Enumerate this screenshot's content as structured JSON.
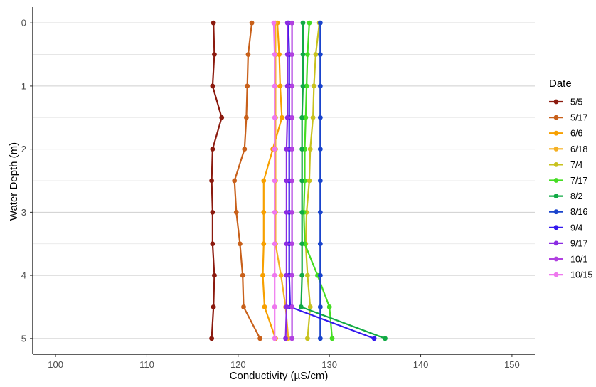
{
  "chart_data": {
    "type": "line",
    "xlabel": "Conductivity (µS/cm)",
    "ylabel": "Water Depth (m)",
    "xlim": [
      97.5,
      152.5
    ],
    "ylim": [
      -0.25,
      5.25
    ],
    "y_reversed": true,
    "x_ticks": [
      100,
      110,
      120,
      130,
      140,
      150
    ],
    "y_ticks": [
      0,
      1,
      2,
      3,
      4,
      5
    ],
    "grid": "horizontal major and minor gridlines",
    "legend_position": "right",
    "legend_title": "Date",
    "depths": [
      0,
      0.5,
      1,
      1.5,
      2,
      2.5,
      3,
      3.5,
      4,
      4.5,
      5
    ],
    "series": [
      {
        "name": "5/5",
        "color": "#8b1a0e",
        "values": [
          117.3,
          117.4,
          117.2,
          118.2,
          117.2,
          117.1,
          117.2,
          117.2,
          117.4,
          117.3,
          117.1
        ]
      },
      {
        "name": "5/17",
        "color": "#c8601a",
        "values": [
          121.5,
          121.1,
          121.0,
          120.9,
          120.7,
          119.6,
          119.8,
          120.2,
          120.5,
          120.6,
          122.4
        ]
      },
      {
        "name": "6/6",
        "color": "#f7a000",
        "values": [
          124.3,
          124.5,
          124.6,
          124.8,
          123.8,
          122.8,
          122.8,
          122.8,
          122.7,
          122.9,
          124.1
        ]
      },
      {
        "name": "6/18",
        "color": "#f5b022",
        "values": [
          124.1,
          124.1,
          124.1,
          124.1,
          124.1,
          124.1,
          124.1,
          124.1,
          124.7,
          125.2,
          125.5
        ]
      },
      {
        "name": "7/4",
        "color": "#c8c21e",
        "values": [
          128.9,
          128.5,
          128.3,
          128.2,
          127.9,
          127.8,
          127.5,
          127.4,
          127.6,
          127.9,
          127.6
        ]
      },
      {
        "name": "7/17",
        "color": "#44dd22",
        "values": [
          127.8,
          127.6,
          127.5,
          127.4,
          127.3,
          127.3,
          127.2,
          127.3,
          128.7,
          130.0,
          130.3
        ]
      },
      {
        "name": "8/2",
        "color": "#11aa44",
        "values": [
          127.1,
          127.1,
          127.1,
          127.0,
          127.0,
          127.0,
          127.0,
          127.0,
          127.0,
          126.9,
          136.1
        ]
      },
      {
        "name": "8/16",
        "color": "#1a44cc",
        "values": [
          129.0,
          129.0,
          129.0,
          129.0,
          129.0,
          129.0,
          129.0,
          129.0,
          129.0,
          129.0,
          129.0
        ]
      },
      {
        "name": "9/4",
        "color": "#3318ee",
        "values": [
          125.5,
          125.6,
          125.6,
          125.6,
          125.6,
          125.6,
          125.6,
          125.6,
          125.6,
          125.7,
          134.9
        ]
      },
      {
        "name": "9/17",
        "color": "#8a2be2",
        "values": [
          125.4,
          125.4,
          125.4,
          125.4,
          125.3,
          125.3,
          125.3,
          125.3,
          125.3,
          125.3,
          125.2
        ]
      },
      {
        "name": "10/1",
        "color": "#b040e0",
        "values": [
          125.9,
          125.9,
          125.9,
          125.9,
          125.9,
          125.9,
          125.9,
          125.9,
          125.9,
          125.9,
          125.9
        ]
      },
      {
        "name": "10/15",
        "color": "#ee77ee",
        "values": [
          123.9,
          124.0,
          124.0,
          124.0,
          124.0,
          124.0,
          124.0,
          124.0,
          124.0,
          124.0,
          124.0
        ]
      }
    ]
  }
}
